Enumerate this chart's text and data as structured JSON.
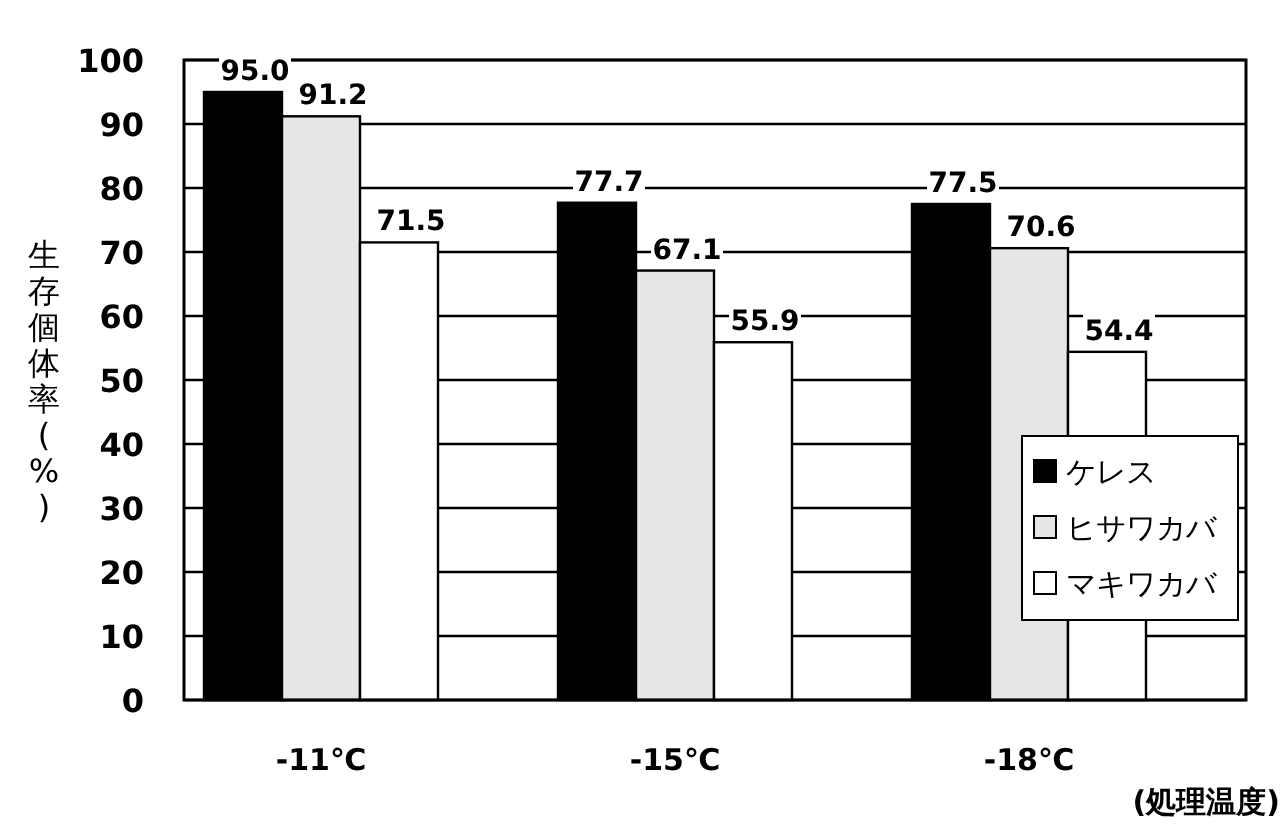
{
  "chart_data": {
    "type": "bar",
    "ylabel": "生存個体率(%)",
    "xlabel": "(処理温度)",
    "categories": [
      "-11℃",
      "-15℃",
      "-18℃"
    ],
    "series": [
      {
        "name": "ケレス",
        "color": "#000000",
        "values": [
          95.0,
          77.7,
          77.5
        ],
        "value_labels": [
          "95.0",
          "77.7",
          "77.5"
        ]
      },
      {
        "name": "ヒサワカバ",
        "color": "#e6e6e6",
        "values": [
          91.2,
          67.1,
          70.6
        ],
        "value_labels": [
          "91.2",
          "67.1",
          "70.6"
        ]
      },
      {
        "name": "マキワカバ",
        "color": "#ffffff",
        "values": [
          71.5,
          55.9,
          54.4
        ],
        "value_labels": [
          "71.5",
          "55.9",
          "54.4"
        ]
      }
    ],
    "ylim": [
      0,
      100
    ],
    "yticks": [
      0,
      10,
      20,
      30,
      40,
      50,
      60,
      70,
      80,
      90,
      100
    ],
    "grid": "y",
    "legend": "bottom right"
  }
}
